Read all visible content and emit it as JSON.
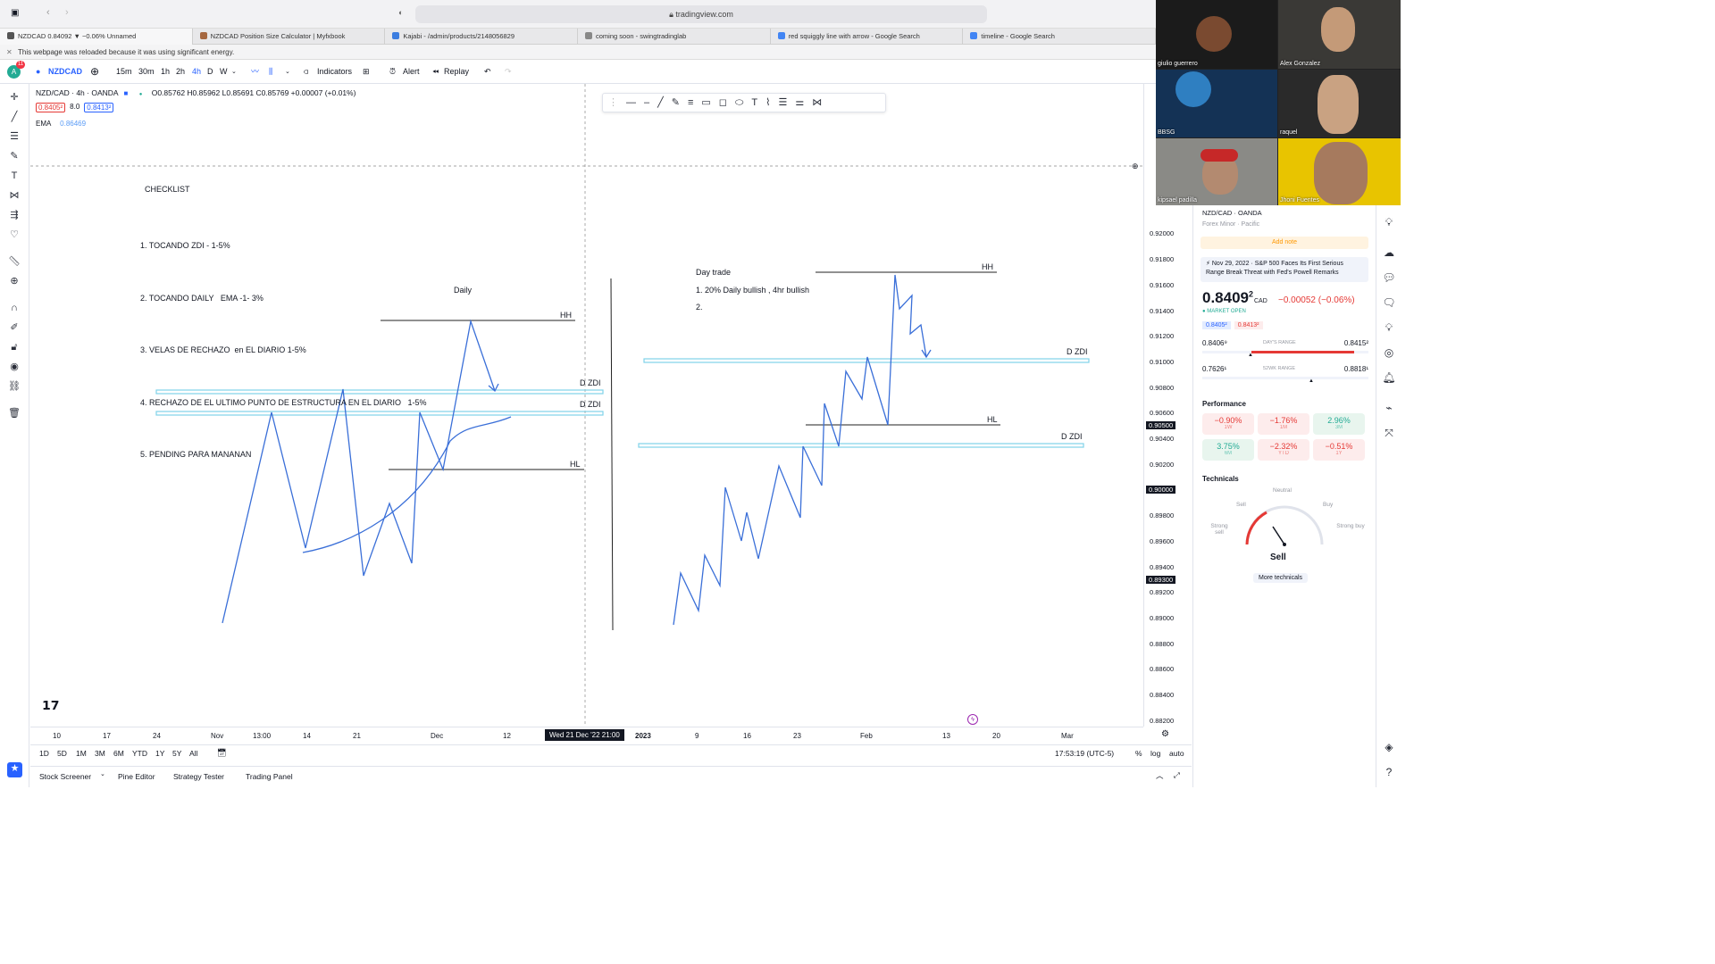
{
  "browser": {
    "url": "tradingview.com",
    "tabs": [
      {
        "label": "NZDCAD 0.84092 ▼ −0.06% Unnamed",
        "active": true
      },
      {
        "label": "NZDCAD Position Size Calculator | Myfxbook"
      },
      {
        "label": "Kajabi - /admin/products/2148056829"
      },
      {
        "label": "coming soon - swingtradinglab"
      },
      {
        "label": "red squiggly line with arrow - Google Search"
      },
      {
        "label": "timeline - Google Search"
      }
    ],
    "reload_notice": "This webpage was reloaded because it was using significant energy."
  },
  "toolbar": {
    "badge": "11",
    "symbol": "NZDCAD",
    "intervals": [
      "15m",
      "30m",
      "1h",
      "2h",
      "4h",
      "D",
      "W"
    ],
    "active_interval": "4h",
    "indicators": "Indicators",
    "alert": "Alert",
    "replay": "Replay"
  },
  "legend": {
    "title": "NZD/CAD · 4h · OANDA",
    "ohlc": "O0.85762 H0.85962 L0.85691 C0.85769 +0.00007 (+0.01%)",
    "bid": "0.8405²",
    "spread": "8.0",
    "ask": "0.8413²",
    "ema_label": "EMA",
    "ema_value": "0.86469"
  },
  "checklist": {
    "title": "CHECKLIST",
    "items": [
      "1. TOCANDO ZDI - 1-5%",
      "2. TOCANDO DAILY   EMA -1- 3%",
      "3. VELAS DE RECHAZO  en EL DIARIO 1-5%",
      "4. RECHAZO DE EL ULTIMO PUNTO DE ESTRUCTURA EN EL DIARIO   1-5%",
      "5. PENDING PARA MANANAN"
    ]
  },
  "drawings": {
    "daily_label": "Daily",
    "hh": "HH",
    "hl": "HL",
    "dzdi": "D ZDI",
    "daytrade_title": "Day trade",
    "daytrade_items": [
      "1. 20% Daily bullish , 4hr bullish",
      "2."
    ]
  },
  "price_axis": {
    "labels": [
      "0.92000",
      "0.91800",
      "0.91600",
      "0.91400",
      "0.91200",
      "0.91000",
      "0.90800",
      "0.90600",
      "0.90400",
      "0.90200",
      "0.89800",
      "0.89600",
      "0.89400",
      "0.89200",
      "0.89000",
      "0.88800",
      "0.88600",
      "0.88400",
      "0.88200"
    ],
    "boxed": [
      "0.90500",
      "0.90000",
      "0.89300"
    ]
  },
  "time_axis": {
    "labels": [
      "10",
      "17",
      "24",
      "Nov",
      "13:00",
      "14",
      "21",
      "Dec",
      "12",
      "2023",
      "9",
      "16",
      "23",
      "Feb",
      "13",
      "20",
      "Mar"
    ],
    "crosshair": "Wed 21 Dec '22  21:00"
  },
  "bottom": {
    "ranges": [
      "1D",
      "5D",
      "1M",
      "3M",
      "6M",
      "YTD",
      "1Y",
      "5Y",
      "All"
    ],
    "clock": "17:53:19 (UTC-5)",
    "pct": "%",
    "log": "log",
    "auto": "auto",
    "panels": [
      "Stock Screener",
      "Pine Editor",
      "Strategy Tester",
      "Trading Panel"
    ]
  },
  "participants": [
    "giulio guerrero",
    "Alex Gonzalez",
    "BBSG",
    "raquel",
    "kipsael padilla",
    "Jhoni Fuentes"
  ],
  "sidebar": {
    "symbol_line": "NZD/CAD · OANDA",
    "subline": "Forex Minor · Pacific",
    "add_note": "Add note",
    "news_date": "Nov 29, 2022",
    "news": "S&P 500 Faces Its First Serious Range Break Threat with Fed's Powell Remarks",
    "price": "0.8409",
    "price_sup": "2",
    "currency": "CAD",
    "change": "−0.00052 (−0.06%)",
    "market": "MARKET OPEN",
    "bid": "0.8405²",
    "ask": "0.8413²",
    "day_low": "0.8406⁹",
    "day_label": "DAY'S RANGE",
    "day_high": "0.8415²",
    "wk_low": "0.7626¹",
    "wk_label": "52WK RANGE",
    "wk_high": "0.8818¹",
    "performance_title": "Performance",
    "performance": [
      {
        "v": "−0.90%",
        "p": "1W"
      },
      {
        "v": "−1.76%",
        "p": "1M"
      },
      {
        "v": "2.96%",
        "p": "3M"
      },
      {
        "v": "3.75%",
        "p": "6M"
      },
      {
        "v": "−2.32%",
        "p": "YTD"
      },
      {
        "v": "−0.51%",
        "p": "1Y"
      }
    ],
    "technicals_title": "Technicals",
    "gauge": {
      "neutral": "Neutral",
      "sell": "Sell",
      "buy": "Buy",
      "strong_sell": "Strong sell",
      "strong_buy": "Strong buy",
      "result": "Sell"
    },
    "more": "More technicals"
  },
  "colors": {
    "accent": "#2962ff",
    "drawing": "#3a6fd8",
    "zone": "#7fd3e8",
    "negative": "#e53935",
    "positive": "#22ab94"
  }
}
